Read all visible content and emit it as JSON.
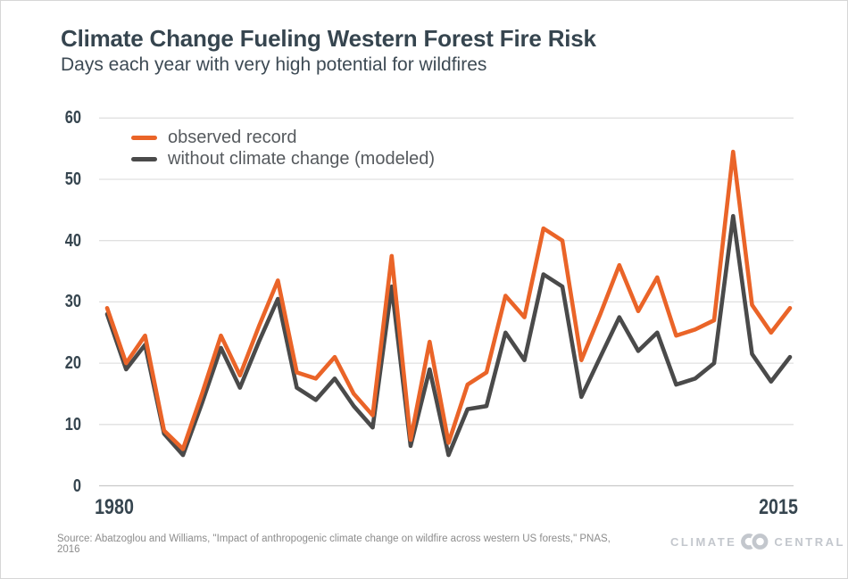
{
  "meta": {
    "source_line": "Source: Abatzoglou and Williams, \"Impact of anthropogenic climate change on wildfire across western US forests,\" PNAS, 2016",
    "logo": {
      "left": "CLIMATE",
      "right": "CENTRAL"
    },
    "colors": {
      "accent_orange": "#EA6428",
      "line_gray": "#4A4A4A",
      "heading": "#36454F",
      "gridline": "#E0E0E0",
      "axis_line": "#C9C9C9",
      "logo_gray": "#C3C7CD"
    }
  },
  "chart_data": {
    "type": "line",
    "title": "Climate Change Fueling Western Forest Fire Risk",
    "subtitle": "Days each year with very high potential for wildfires",
    "xlabel": "",
    "ylabel": "",
    "ylim": [
      0,
      60
    ],
    "grid": "horizontal",
    "legend_position": "top-left",
    "x": [
      1979,
      1980,
      1981,
      1982,
      1983,
      1984,
      1985,
      1986,
      1987,
      1988,
      1989,
      1990,
      1991,
      1992,
      1993,
      1994,
      1995,
      1996,
      1997,
      1998,
      1999,
      2000,
      2001,
      2002,
      2003,
      2004,
      2005,
      2006,
      2007,
      2008,
      2009,
      2010,
      2011,
      2012,
      2013,
      2014,
      2015
    ],
    "y_ticks": [
      0,
      10,
      20,
      30,
      40,
      50,
      60
    ],
    "x_tick_labels": [
      {
        "year": 1980,
        "label": "1980"
      },
      {
        "year": 2015,
        "label": "2015"
      }
    ],
    "series": [
      {
        "name": "observed record",
        "color": "#EA6428",
        "values": [
          29,
          20,
          24.5,
          9,
          6,
          15,
          24.5,
          18,
          26,
          33.5,
          18.5,
          17.5,
          21,
          15,
          11.5,
          37.5,
          7.5,
          23.5,
          7,
          16.5,
          18.5,
          31,
          27.5,
          42,
          40,
          20.5,
          28,
          36,
          28.5,
          34,
          24.5,
          25.5,
          27,
          54.5,
          29.5,
          25,
          29
        ]
      },
      {
        "name": "without climate change (modeled)",
        "color": "#4A4A4A",
        "values": [
          28,
          19,
          23,
          8.5,
          5,
          13.5,
          22.5,
          16,
          23.5,
          30.5,
          16,
          14,
          17.5,
          13,
          9.5,
          32.5,
          6.5,
          19,
          5,
          12.5,
          13,
          25,
          20.5,
          34.5,
          32.5,
          14.5,
          21,
          27.5,
          22,
          25,
          16.5,
          17.5,
          20,
          44,
          21.5,
          17,
          21
        ]
      }
    ]
  }
}
